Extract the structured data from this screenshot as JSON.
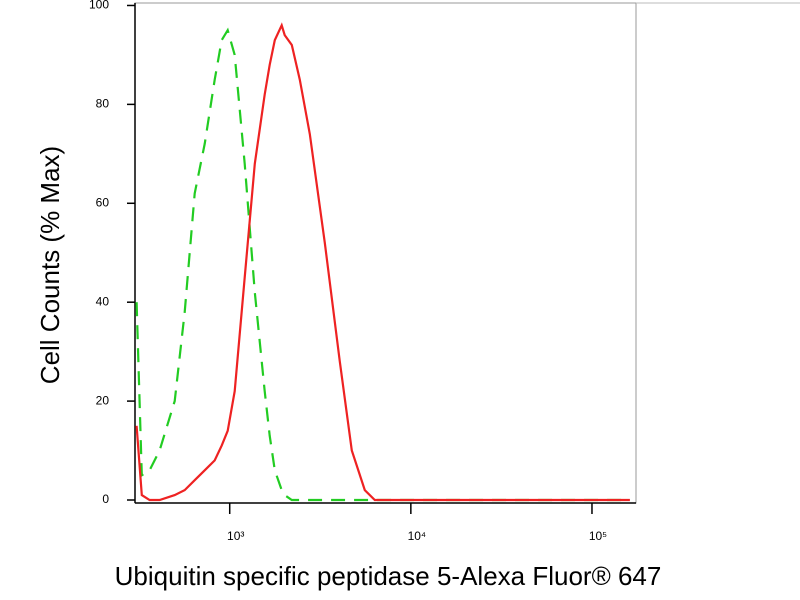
{
  "chart_data": {
    "type": "line",
    "x_label": "Ubiquitin specific peptidase 5-Alexa Fluor® 647",
    "y_label": "Cell Counts (% Max)",
    "x": [
      306,
      327,
      361,
      410,
      497,
      564,
      641,
      728,
      826,
      903,
      975,
      1066,
      1210,
      1375,
      1561,
      1663,
      1773,
      1937,
      2012,
      2201,
      2437,
      2768,
      3350,
      4054,
      4722,
      5570,
      6327,
      8690,
      16400,
      31000,
      58600,
      110700,
      162000
    ],
    "series": [
      {
        "color": "#22cc22",
        "dashed": true,
        "values": [
          40,
          5,
          6,
          10,
          20,
          38,
          62,
          72,
          85,
          93,
          95,
          90,
          68,
          42,
          22,
          13,
          6,
          2,
          1,
          0,
          0,
          0,
          0,
          0,
          0,
          0,
          0,
          0,
          0,
          0,
          0,
          0,
          0
        ]
      },
      {
        "color": "#ee2222",
        "dashed": false,
        "values": [
          15,
          1,
          0,
          0,
          1,
          2,
          4,
          6,
          8,
          11,
          14,
          22,
          45,
          68,
          82,
          88,
          93,
          96,
          94,
          92,
          85,
          74,
          52,
          28,
          10,
          2,
          0,
          0,
          0,
          0,
          0,
          0,
          0
        ]
      }
    ],
    "xlog": true,
    "xlim": [
      300,
      175000
    ],
    "xticks": [
      {
        "value": 1000,
        "label": "10³"
      },
      {
        "value": 10000,
        "label": "10⁴"
      },
      {
        "value": 100000,
        "label": "10⁵"
      }
    ],
    "ylim": [
      0,
      100.5
    ],
    "yticks": [
      0,
      20,
      40,
      60,
      80,
      100
    ]
  }
}
